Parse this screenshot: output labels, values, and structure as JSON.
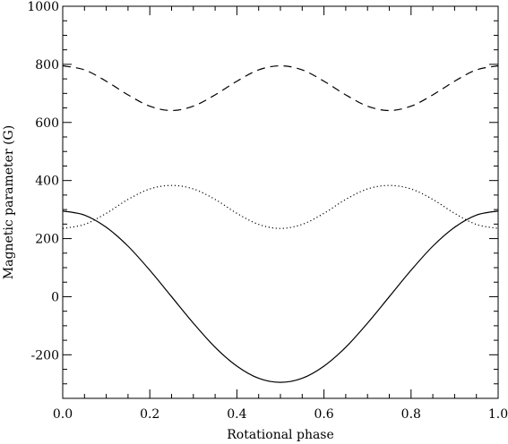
{
  "chart_data": {
    "type": "line",
    "title": "",
    "xlabel": "Rotational phase",
    "ylabel": "Magnetic parameter (G)",
    "xlim": [
      0.0,
      1.0
    ],
    "ylim": [
      -350,
      1000
    ],
    "x_ticks": [
      0.0,
      0.2,
      0.4,
      0.6,
      0.8,
      1.0
    ],
    "x_tick_labels": [
      "0.0",
      "0.2",
      "0.4",
      "0.6",
      "0.8",
      "1.0"
    ],
    "y_ticks": [
      -200,
      0,
      200,
      400,
      600,
      800,
      1000
    ],
    "y_tick_labels": [
      "-200",
      "0",
      "200",
      "400",
      "600",
      "800",
      "1000"
    ],
    "grid": false,
    "legend": "none",
    "series": [
      {
        "style": "dashed",
        "color": "#000000",
        "x": [
          0.0,
          0.05,
          0.1,
          0.15,
          0.2,
          0.25,
          0.3,
          0.35,
          0.4,
          0.45,
          0.5,
          0.55,
          0.6,
          0.65,
          0.7,
          0.75,
          0.8,
          0.85,
          0.9,
          0.95,
          1.0
        ],
        "values": [
          795,
          781,
          742,
          695,
          656,
          641,
          656,
          695,
          742,
          781,
          795,
          781,
          742,
          695,
          656,
          641,
          656,
          695,
          742,
          781,
          795
        ]
      },
      {
        "style": "dotted",
        "color": "#000000",
        "x": [
          0.0,
          0.05,
          0.1,
          0.15,
          0.2,
          0.25,
          0.3,
          0.35,
          0.4,
          0.45,
          0.5,
          0.55,
          0.6,
          0.65,
          0.7,
          0.75,
          0.8,
          0.85,
          0.9,
          0.95,
          1.0
        ],
        "values": [
          235,
          249,
          287,
          335,
          371,
          383,
          371,
          335,
          287,
          249,
          235,
          249,
          287,
          335,
          371,
          383,
          371,
          335,
          287,
          249,
          235
        ]
      },
      {
        "style": "solid",
        "color": "#000000",
        "x": [
          0.0,
          0.05,
          0.1,
          0.15,
          0.2,
          0.25,
          0.3,
          0.35,
          0.4,
          0.45,
          0.5,
          0.55,
          0.6,
          0.65,
          0.7,
          0.75,
          0.8,
          0.85,
          0.9,
          0.95,
          1.0
        ],
        "values": [
          295,
          281,
          239,
          174,
          91,
          0,
          -91,
          -174,
          -239,
          -281,
          -295,
          -281,
          -239,
          -174,
          -91,
          0,
          91,
          174,
          239,
          281,
          295
        ]
      }
    ]
  }
}
